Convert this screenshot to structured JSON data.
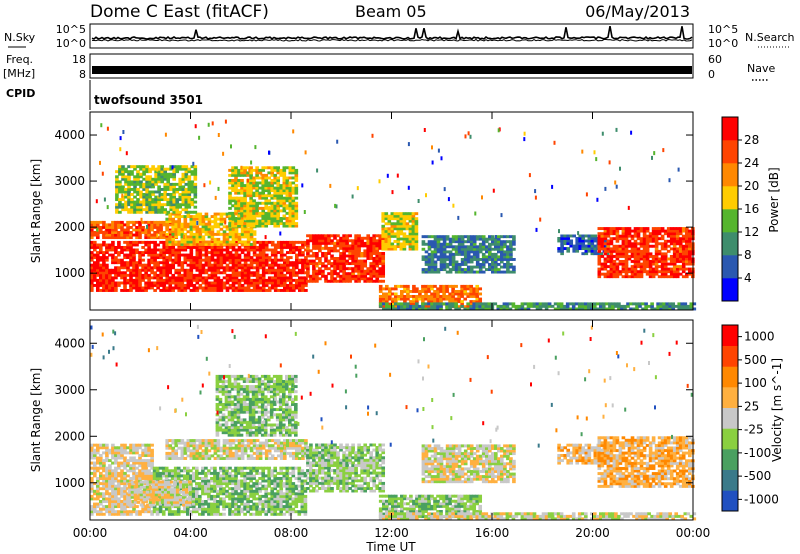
{
  "header": {
    "radar": "Dome C East (fitACF)",
    "beam": "Beam 05",
    "date": "06/May/2013"
  },
  "top_panels": {
    "nsky_label": "N.Sky",
    "nsearch_label": "N.Search",
    "nsky_ticks": [
      "10^5",
      "10^0"
    ],
    "nsearch_ticks": [
      "10^5",
      "10^0"
    ],
    "freq_label_1": "Freq.",
    "freq_label_2": "[MHz]",
    "freq_ticks": [
      "18",
      "8"
    ],
    "nave_label": "Nave",
    "nave_ticks": [
      "60",
      "0"
    ],
    "cpid_label": "CPID",
    "cpid_value": "twofsound 3501"
  },
  "chart_data": [
    {
      "type": "heatmap",
      "name": "power",
      "ylabel": "Slant Range [km]",
      "xlabel": "",
      "x_ticks": [
        "00:00",
        "04:00",
        "08:00",
        "12:00",
        "16:00",
        "20:00",
        "00:00"
      ],
      "xlim_hours": [
        0,
        24
      ],
      "ylim": [
        200,
        4500
      ],
      "y_ticks": [
        1000,
        2000,
        3000,
        4000
      ],
      "colorbar": {
        "label": "Power [dB]",
        "ticks": [
          "4",
          "8",
          "12",
          "16",
          "20",
          "24",
          "28"
        ],
        "range": [
          0,
          30
        ],
        "colors": [
          "#0000ff",
          "#2a58b0",
          "#3e8d6c",
          "#55b52e",
          "#ffcc00",
          "#ff8800",
          "#ff4400",
          "#ff0000"
        ]
      },
      "regions": [
        {
          "t0": 0.0,
          "t1": 8.6,
          "r0": 600,
          "r1": 1700,
          "level": 27
        },
        {
          "t0": 0.0,
          "t1": 3.5,
          "r0": 1750,
          "r1": 2100,
          "level": 24
        },
        {
          "t0": 3.0,
          "t1": 6.5,
          "r0": 1600,
          "r1": 2300,
          "level": 18
        },
        {
          "t0": 1.0,
          "t1": 4.2,
          "r0": 2300,
          "r1": 3300,
          "level": 14
        },
        {
          "t0": 5.5,
          "t1": 8.2,
          "r0": 2000,
          "r1": 3300,
          "level": 16
        },
        {
          "t0": 8.6,
          "t1": 11.6,
          "r0": 800,
          "r1": 1800,
          "level": 26
        },
        {
          "t0": 11.6,
          "t1": 13.0,
          "r0": 1500,
          "r1": 2300,
          "level": 16
        },
        {
          "t0": 11.5,
          "t1": 15.5,
          "r0": 250,
          "r1": 700,
          "level": 22
        },
        {
          "t0": 13.2,
          "t1": 16.8,
          "r0": 1000,
          "r1": 1800,
          "level": 8
        },
        {
          "t0": 18.6,
          "t1": 20.6,
          "r0": 1400,
          "r1": 1800,
          "level": 6
        },
        {
          "t0": 20.2,
          "t1": 24.0,
          "r0": 900,
          "r1": 2000,
          "level": 26
        },
        {
          "t0": 11.5,
          "t1": 24.0,
          "r0": 200,
          "r1": 350,
          "level": 10
        }
      ]
    },
    {
      "type": "heatmap",
      "name": "velocity",
      "ylabel": "Slant Range [km]",
      "xlabel": "Time UT",
      "x_ticks": [
        "00:00",
        "04:00",
        "08:00",
        "12:00",
        "16:00",
        "20:00",
        "00:00"
      ],
      "xlim_hours": [
        0,
        24
      ],
      "ylim": [
        200,
        4500
      ],
      "y_ticks": [
        1000,
        2000,
        3000,
        4000
      ],
      "colorbar": {
        "label": "Velocity [m s^-1]",
        "ticks": [
          "1000",
          "500",
          "100",
          "25",
          "-25",
          "-100",
          "-500",
          "-1000"
        ],
        "range": [
          -1200,
          1200
        ],
        "colors": [
          "#2050c0",
          "#3a7a8a",
          "#4aa060",
          "#8ad040",
          "#c8c8c8",
          "#ffb040",
          "#ff8800",
          "#ff4400",
          "#ff0000"
        ]
      },
      "regions": [
        {
          "t0": 0.0,
          "t1": 2.5,
          "r0": 300,
          "r1": 1800,
          "level": 100
        },
        {
          "t0": 2.5,
          "t1": 8.6,
          "r0": 300,
          "r1": 1300,
          "level": -300
        },
        {
          "t0": 1.5,
          "t1": 4.0,
          "r0": 500,
          "r1": 1000,
          "level": 50
        },
        {
          "t0": 3.0,
          "t1": 8.6,
          "r0": 1500,
          "r1": 1900,
          "level": 0
        },
        {
          "t0": 5.0,
          "t1": 8.2,
          "r0": 2000,
          "r1": 3300,
          "level": -300
        },
        {
          "t0": 8.6,
          "t1": 11.6,
          "r0": 800,
          "r1": 1800,
          "level": -200
        },
        {
          "t0": 11.5,
          "t1": 15.5,
          "r0": 250,
          "r1": 700,
          "level": -300
        },
        {
          "t0": 13.2,
          "t1": 16.8,
          "r0": 1000,
          "r1": 1800,
          "level": 0
        },
        {
          "t0": 18.6,
          "t1": 20.6,
          "r0": 1400,
          "r1": 1800,
          "level": 200
        },
        {
          "t0": 20.2,
          "t1": 24.0,
          "r0": 900,
          "r1": 2000,
          "level": 300
        },
        {
          "t0": 11.5,
          "t1": 24.0,
          "r0": 200,
          "r1": 350,
          "level": 0
        }
      ]
    }
  ]
}
